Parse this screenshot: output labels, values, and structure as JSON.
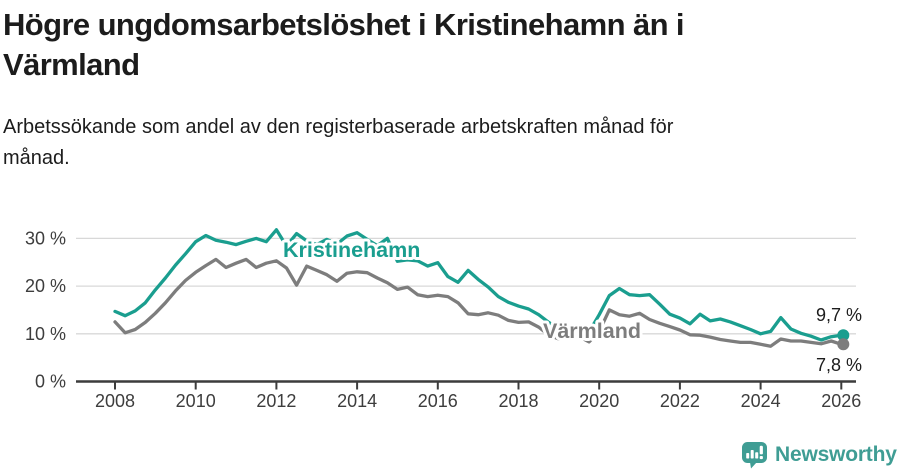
{
  "title_lines": [
    "Högre ungdomsarbetslöshet i Kristinehamn än i",
    "Värmland"
  ],
  "subtitle_lines": [
    "Arbetssökande som andel av den registerbaserade arbetskraften månad för",
    "månad."
  ],
  "branding": {
    "logo_text": "Newsworthy"
  },
  "colors": {
    "accent_teal": "#1a9e8f",
    "line_gray": "#7d7d7d",
    "grid": "#d8d8d8",
    "axis": "#3c3c3c",
    "tick_text": "#3d3d3d",
    "value_text": "#1c1c1c",
    "logo_teal": "#3f9d94"
  },
  "chart_data": {
    "type": "line",
    "x_start": 2008,
    "x_step": 0.25,
    "xlim": [
      2007.0,
      2026.4
    ],
    "ylim": [
      0,
      33
    ],
    "yticks": [
      0,
      10,
      20,
      30
    ],
    "ytick_labels": [
      "0 %",
      "10 %",
      "20 %",
      "30 %"
    ],
    "xticks": [
      2008,
      2010,
      2012,
      2014,
      2016,
      2018,
      2020,
      2022,
      2024,
      2026
    ],
    "xtick_labels": [
      "2008",
      "2010",
      "2012",
      "2014",
      "2016",
      "2018",
      "2020",
      "2022",
      "2024",
      "2026"
    ],
    "grid": "horizontal-only",
    "legend": "inline-labels",
    "series": [
      {
        "name": "Kristinehamn",
        "color": "#1a9e8f",
        "end_label": "9,7 %",
        "end_value": 9.7,
        "values": [
          14.7,
          13.8,
          14.8,
          16.5,
          19.2,
          21.7,
          24.4,
          26.8,
          29.3,
          30.6,
          29.6,
          29.2,
          28.7,
          29.4,
          30.0,
          29.3,
          31.8,
          28.4,
          31.0,
          29.5,
          28.7,
          29.8,
          28.8,
          30.5,
          31.2,
          29.8,
          28.5,
          30.0,
          25.2,
          25.5,
          25.3,
          24.2,
          24.9,
          22.0,
          20.8,
          23.3,
          21.4,
          19.8,
          17.8,
          16.6,
          15.8,
          15.2,
          14.0,
          12.4,
          11.0,
          10.8,
          11.3,
          10.4,
          14.0,
          18.0,
          19.5,
          18.2,
          18.0,
          18.2,
          16.2,
          14.1,
          13.3,
          12.1,
          14.1,
          12.7,
          13.1,
          12.5,
          11.7,
          10.9,
          10.0,
          10.5,
          13.4,
          11.0,
          10.1,
          9.5,
          8.7,
          9.4,
          9.7
        ]
      },
      {
        "name": "Värmland",
        "color": "#7d7d7d",
        "end_label": "7,8 %",
        "end_value": 7.8,
        "values": [
          12.5,
          10.2,
          10.9,
          12.4,
          14.3,
          16.5,
          19.0,
          21.2,
          22.9,
          24.3,
          25.6,
          23.9,
          24.8,
          25.6,
          23.9,
          24.8,
          25.3,
          23.8,
          20.2,
          24.2,
          23.3,
          22.4,
          21.0,
          22.7,
          23.0,
          22.8,
          21.7,
          20.7,
          19.3,
          19.8,
          18.2,
          17.8,
          18.1,
          17.8,
          16.5,
          14.2,
          14.0,
          14.4,
          13.9,
          12.8,
          12.4,
          12.5,
          11.4,
          9.7,
          8.9,
          9.6,
          9.4,
          8.3,
          10.5,
          15.0,
          14.0,
          13.7,
          14.3,
          13.0,
          12.2,
          11.5,
          10.8,
          9.8,
          9.7,
          9.3,
          8.8,
          8.5,
          8.2,
          8.2,
          7.8,
          7.4,
          8.9,
          8.5,
          8.5,
          8.2,
          7.9,
          8.5,
          7.8
        ]
      }
    ]
  }
}
